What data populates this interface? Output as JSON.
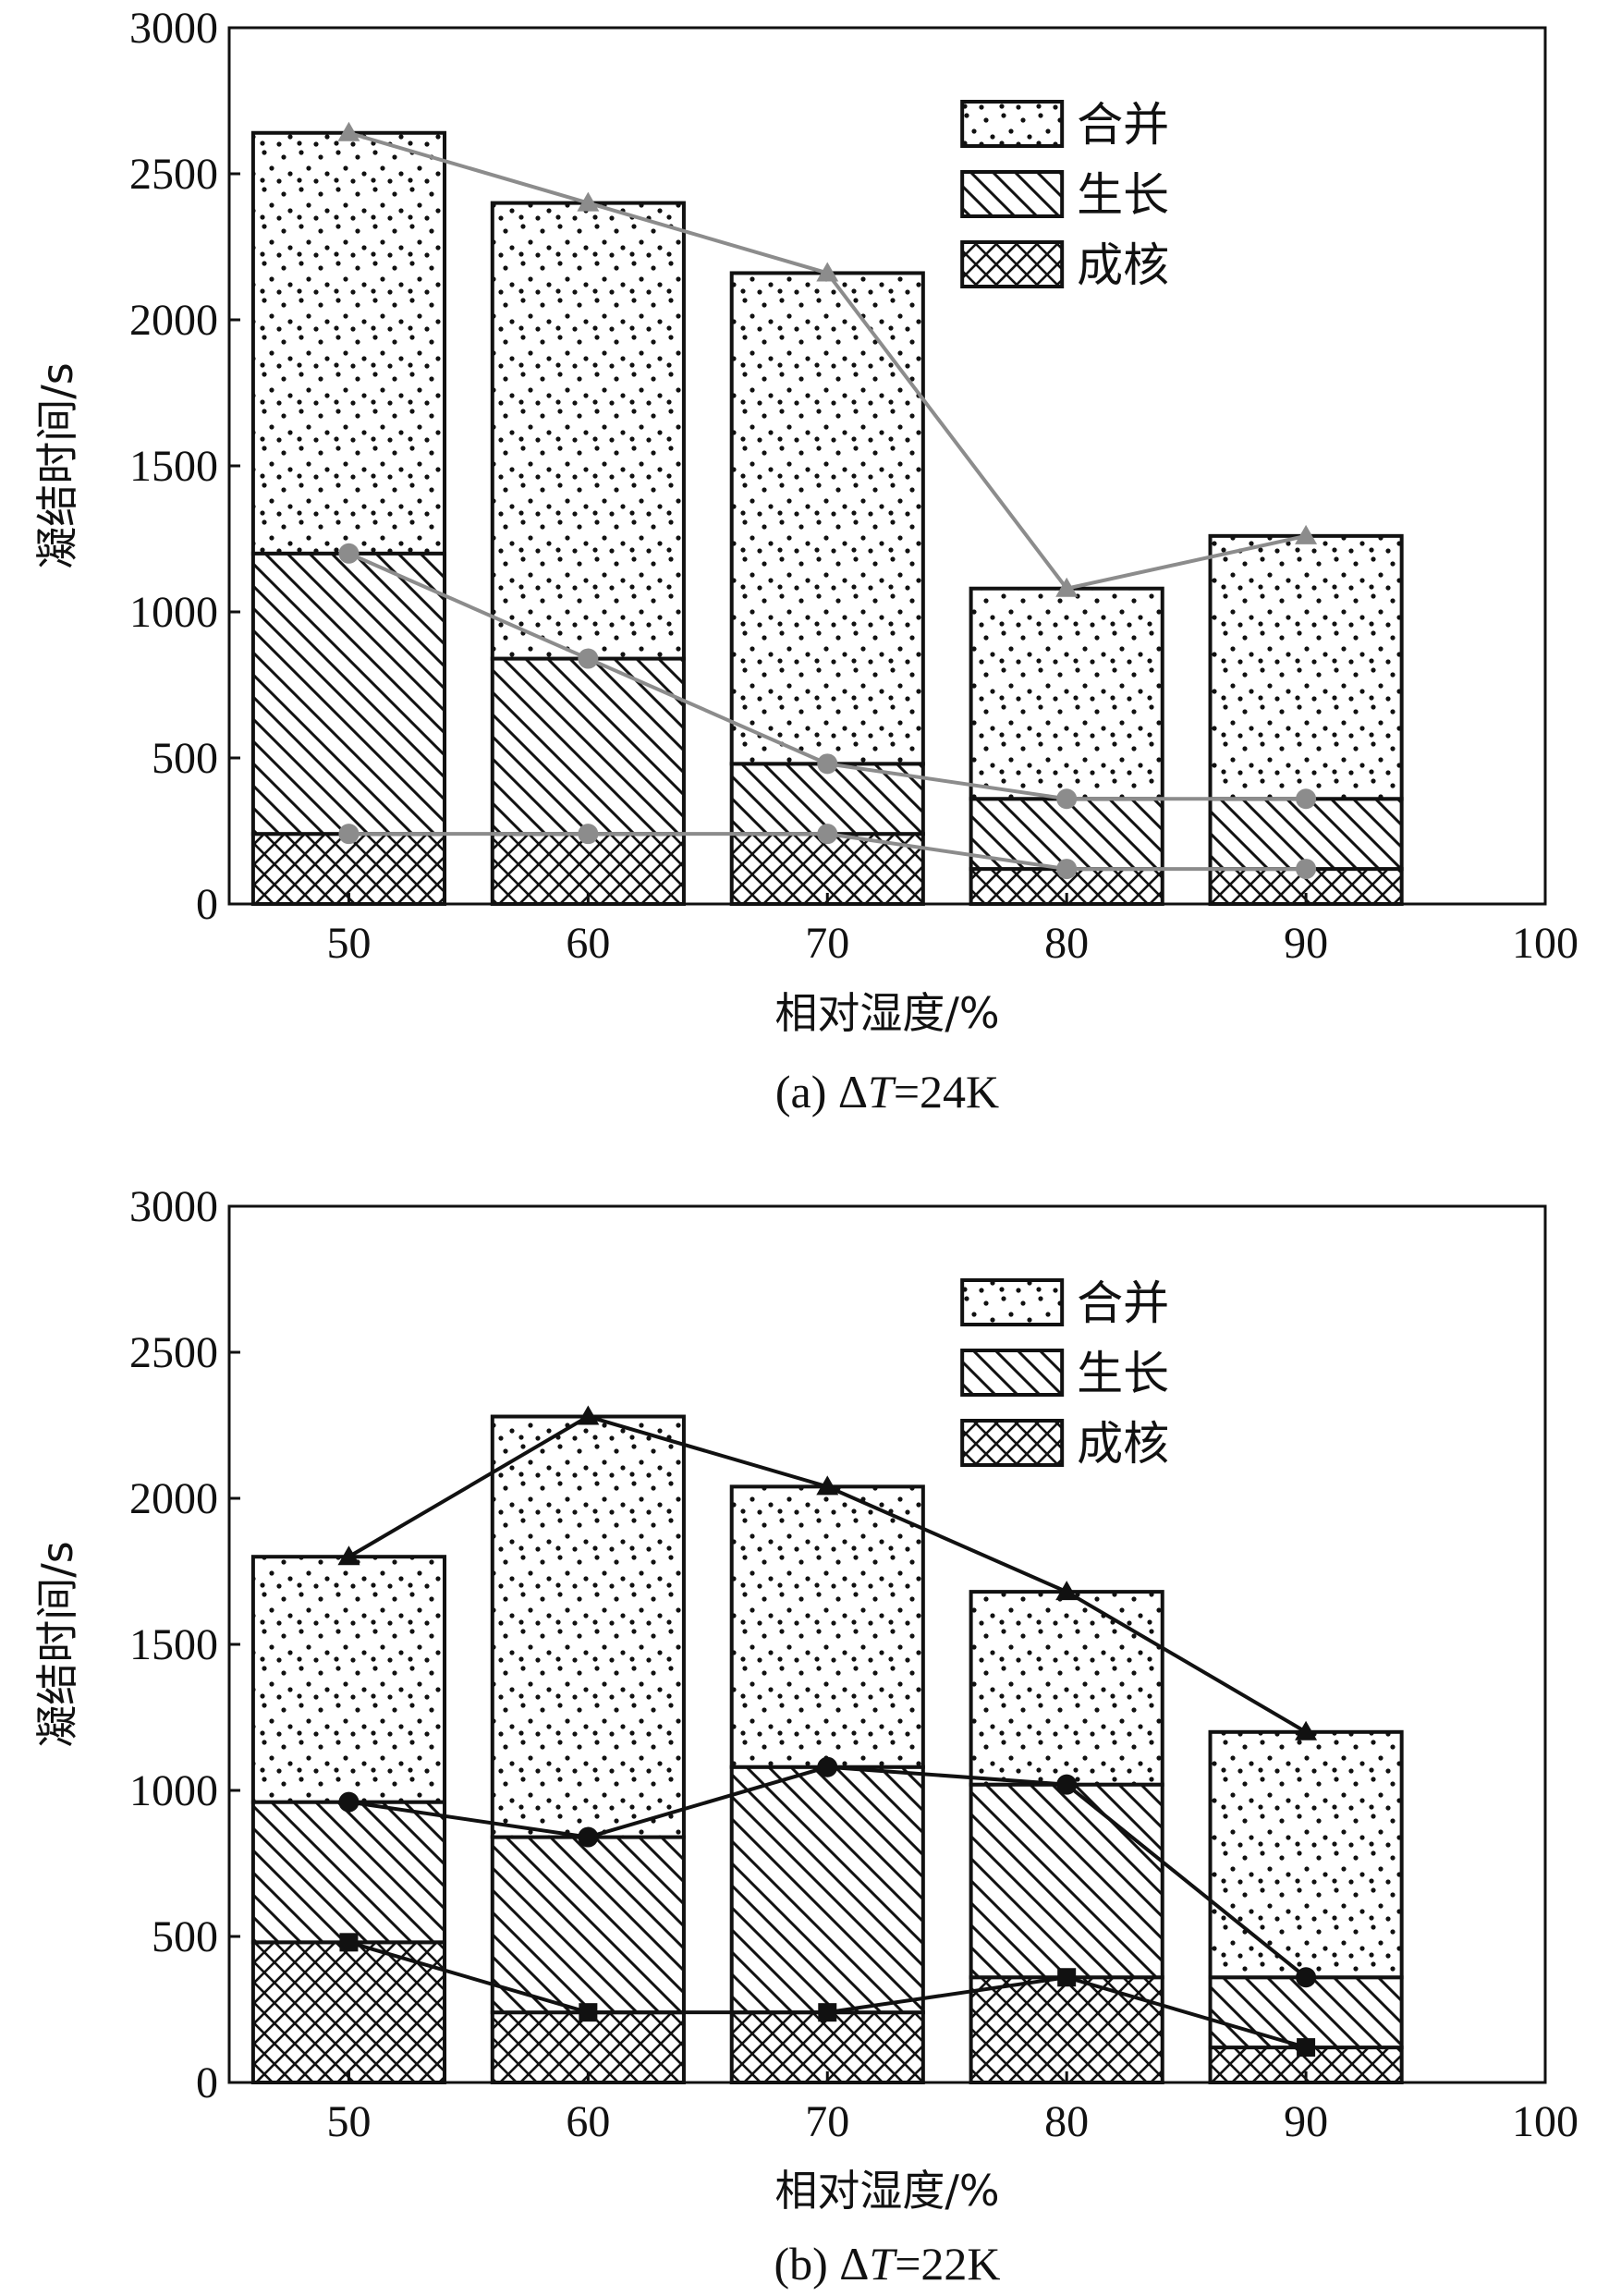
{
  "chart_data": [
    {
      "type": "bar",
      "stacked": true,
      "title": "(a) ΔT=24K",
      "caption_prefix": "(a) Δ",
      "caption_var": "T",
      "caption_suffix": "=24K",
      "xlabel": "相对湿度/%",
      "ylabel": "凝结时间/s",
      "xlim": [
        45,
        100
      ],
      "ylim": [
        0,
        3000
      ],
      "xticks": [
        50,
        60,
        70,
        80,
        90,
        100
      ],
      "yticks": [
        0,
        500,
        1000,
        1500,
        2000,
        2500,
        3000
      ],
      "categories": [
        50,
        60,
        70,
        80,
        90
      ],
      "series": [
        {
          "name": "成核",
          "pattern": "crosshatch",
          "values": [
            240,
            240,
            240,
            120,
            120
          ]
        },
        {
          "name": "生长",
          "pattern": "diagonal",
          "values": [
            960,
            600,
            240,
            240,
            240
          ]
        },
        {
          "name": "合并",
          "pattern": "dots",
          "values": [
            1440,
            1560,
            1680,
            720,
            900
          ]
        }
      ],
      "lines": [
        {
          "marker": "triangle",
          "x": [
            50,
            60,
            70,
            80,
            90
          ],
          "y": [
            2640,
            2400,
            2160,
            1080,
            1260
          ]
        },
        {
          "marker": "circle",
          "x": [
            50,
            60,
            70,
            80,
            90
          ],
          "y": [
            1200,
            840,
            480,
            360,
            360
          ]
        },
        {
          "marker": "circle",
          "x": [
            50,
            60,
            70,
            80,
            90
          ],
          "y": [
            240,
            240,
            240,
            120,
            120
          ]
        }
      ],
      "line_color": "#8c8c8c",
      "legend": {
        "position": "top-right",
        "order": [
          "合并",
          "生长",
          "成核"
        ]
      }
    },
    {
      "type": "bar",
      "stacked": true,
      "title": "(b) ΔT=22K",
      "caption_prefix": "(b) Δ",
      "caption_var": "T",
      "caption_suffix": "=22K",
      "xlabel": "相对湿度/%",
      "ylabel": "凝结时间/s",
      "xlim": [
        45,
        100
      ],
      "ylim": [
        0,
        3000
      ],
      "xticks": [
        50,
        60,
        70,
        80,
        90,
        100
      ],
      "yticks": [
        0,
        500,
        1000,
        1500,
        2000,
        2500,
        3000
      ],
      "categories": [
        50,
        60,
        70,
        80,
        90
      ],
      "series": [
        {
          "name": "成核",
          "pattern": "crosshatch",
          "values": [
            480,
            240,
            240,
            360,
            120
          ]
        },
        {
          "name": "生长",
          "pattern": "diagonal",
          "values": [
            480,
            600,
            840,
            660,
            240
          ]
        },
        {
          "name": "合并",
          "pattern": "dots",
          "values": [
            840,
            1440,
            960,
            660,
            840
          ]
        }
      ],
      "lines": [
        {
          "marker": "triangle",
          "x": [
            50,
            60,
            70,
            80,
            90
          ],
          "y": [
            1800,
            2280,
            2040,
            1680,
            1200
          ]
        },
        {
          "marker": "circle",
          "x": [
            50,
            60,
            70,
            80,
            90
          ],
          "y": [
            960,
            840,
            1080,
            1020,
            360
          ]
        },
        {
          "marker": "square",
          "x": [
            50,
            60,
            70,
            80,
            90
          ],
          "y": [
            480,
            240,
            240,
            360,
            120
          ]
        }
      ],
      "line_color": "#111111",
      "legend": {
        "position": "top-right",
        "order": [
          "合并",
          "生长",
          "成核"
        ]
      }
    }
  ]
}
